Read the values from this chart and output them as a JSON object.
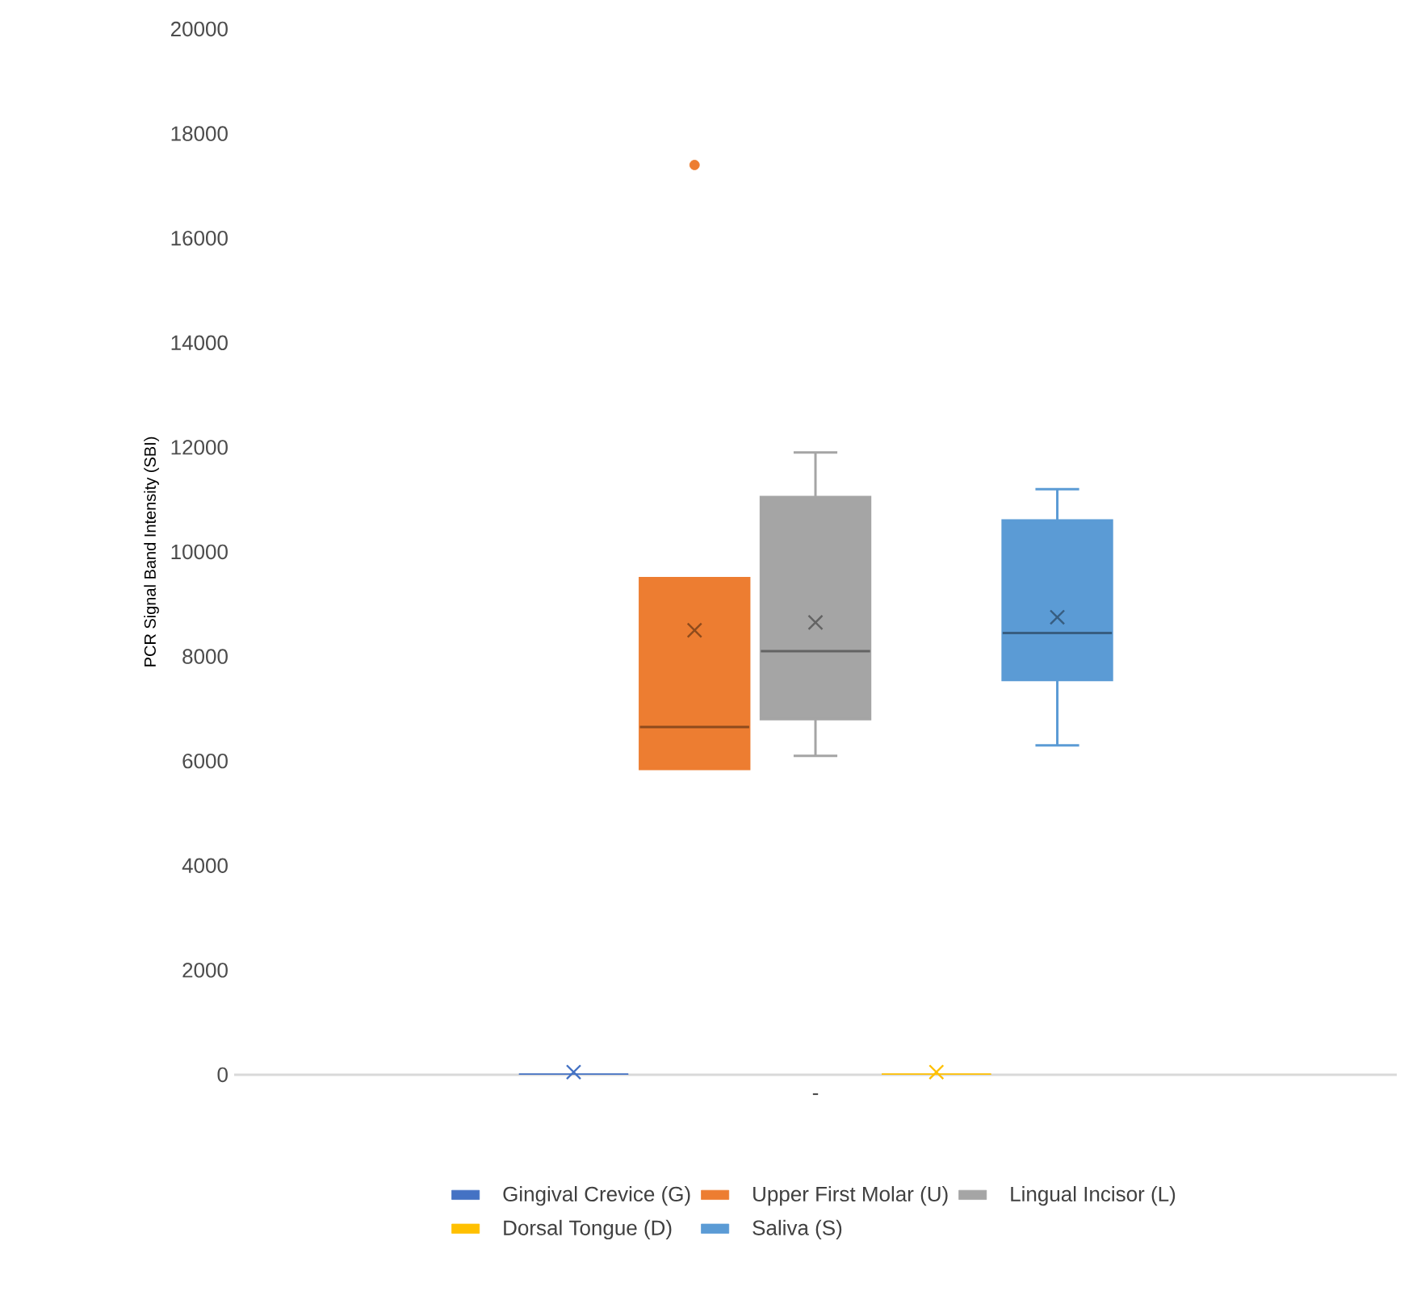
{
  "chart_data": {
    "type": "box",
    "ylabel": "PCR Signal Band Intensity (SBI)",
    "categories": [
      "-"
    ],
    "ylim": [
      0,
      20000
    ],
    "yticks": [
      0,
      2000,
      4000,
      6000,
      8000,
      10000,
      12000,
      14000,
      16000,
      18000,
      20000
    ],
    "grid": false,
    "legend": "bottom",
    "marker": "cross",
    "series": [
      {
        "name": "Gingival Crevice (G)",
        "color": "#4472c4",
        "boxes": [
          {
            "low": 0,
            "q1": 0,
            "median": 0,
            "q3": 0,
            "high": 0,
            "mean": 50
          }
        ]
      },
      {
        "name": "Upper First Molar (U)",
        "color": "#ed7d31",
        "boxes": [
          {
            "low": 5850,
            "q1": 5850,
            "median": 6650,
            "q3": 9500,
            "high": 9500,
            "mean": 8500,
            "outliers": [
              17400
            ]
          }
        ]
      },
      {
        "name": "Lingual Incisor (L)",
        "color": "#a5a5a5",
        "boxes": [
          {
            "low": 6100,
            "q1": 6800,
            "median": 8100,
            "q3": 11050,
            "high": 11900,
            "mean": 8650
          }
        ]
      },
      {
        "name": "Dorsal Tongue (D)",
        "color": "#ffc000",
        "boxes": [
          {
            "low": 0,
            "q1": 0,
            "median": 0,
            "q3": 0,
            "high": 0,
            "mean": 50
          }
        ]
      },
      {
        "name": "Saliva (S)",
        "color": "#5b9bd5",
        "boxes": [
          {
            "low": 6300,
            "q1": 7550,
            "median": 8450,
            "q3": 10600,
            "high": 11200,
            "mean": 8750
          }
        ]
      }
    ]
  }
}
